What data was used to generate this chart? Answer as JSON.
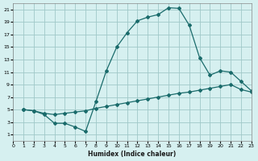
{
  "xlabel": "Humidex (Indice chaleur)",
  "bg_color": "#d6f0f0",
  "grid_color": "#a0c8c8",
  "line_color": "#1a6b6b",
  "xlim": [
    0,
    23
  ],
  "ylim": [
    0,
    22
  ],
  "xticks": [
    0,
    1,
    2,
    3,
    4,
    5,
    6,
    7,
    8,
    9,
    10,
    11,
    12,
    13,
    14,
    15,
    16,
    17,
    18,
    19,
    20,
    21,
    22,
    23
  ],
  "yticks": [
    1,
    3,
    5,
    7,
    9,
    11,
    13,
    15,
    17,
    19,
    21
  ],
  "curve1_x": [
    1,
    2,
    3,
    4,
    5,
    6,
    7,
    8,
    9,
    10,
    11,
    12,
    13,
    14,
    15,
    16,
    17,
    18,
    19,
    20,
    21,
    22,
    23
  ],
  "curve1_y": [
    5,
    4.8,
    4.2,
    2.8,
    2.8,
    2.2,
    1.5,
    6.3,
    11.2,
    15.0,
    17.3,
    19.2,
    19.8,
    20.2,
    21.3,
    21.2,
    18.5,
    13.3,
    10.5,
    11.2,
    11.0,
    9.5,
    8.0
  ],
  "curve2_x": [
    1,
    2,
    3,
    4,
    5,
    6,
    7,
    8,
    9,
    10,
    11,
    12,
    13,
    14,
    15,
    16,
    17,
    18,
    19,
    20,
    21,
    22,
    23
  ],
  "curve2_y": [
    5,
    4.8,
    4.4,
    4.2,
    4.4,
    4.6,
    4.8,
    5.2,
    5.5,
    5.8,
    6.1,
    6.4,
    6.7,
    7.0,
    7.3,
    7.6,
    7.8,
    8.1,
    8.4,
    8.7,
    9.0,
    8.2,
    7.8
  ]
}
